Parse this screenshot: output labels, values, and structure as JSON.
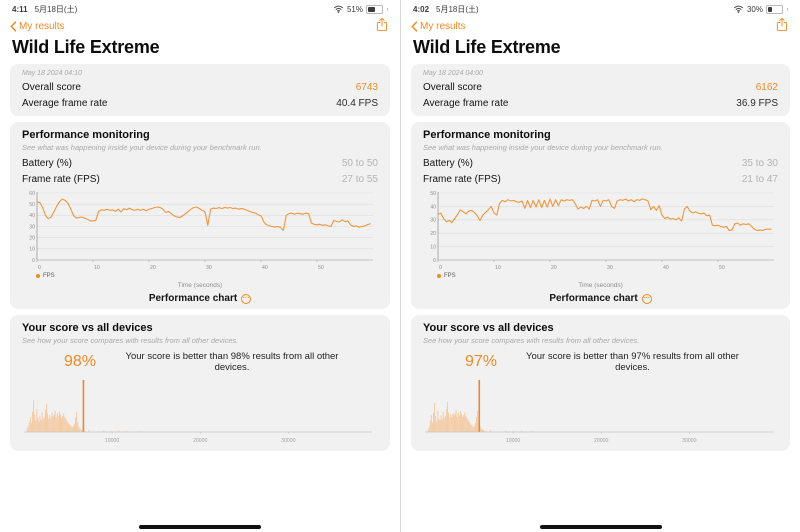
{
  "colors": {
    "accent": "#f08a24",
    "chart_line": "#f0963c",
    "hist_bar": "#f5cba4",
    "hist_marker": "#ee8430"
  },
  "icons": {
    "more": "···"
  },
  "panels": [
    {
      "status": {
        "time": "4:11",
        "date": "5月18日(土)",
        "battery_percent": "51%",
        "battery_fill": 0.51
      },
      "nav": {
        "back_label": "My results"
      },
      "page_title": "Wild Life Extreme",
      "result": {
        "datetime": "May 18 2024 04:10",
        "overall_label": "Overall score",
        "overall_value": "6743",
        "avg_label": "Average frame rate",
        "avg_value": "40.4 FPS"
      },
      "monitoring": {
        "title": "Performance monitoring",
        "subtitle": "See what was happening inside your device during your benchmark run.",
        "battery_label": "Battery (%)",
        "battery_value": "50 to 50",
        "framerate_label": "Frame rate (FPS)",
        "framerate_value": "27 to 55",
        "legend_label": "FPS",
        "x_axis_label": "Time (seconds)",
        "chart_caption": "Performance chart"
      },
      "comparison": {
        "title": "Your score vs all devices",
        "subtitle": "See how your score compares with results from all other devices.",
        "percent": "98%",
        "description": "Your score is better than 98% results from all other devices."
      }
    },
    {
      "status": {
        "time": "4:02",
        "date": "5月18日(土)",
        "battery_percent": "30%",
        "battery_fill": 0.3
      },
      "nav": {
        "back_label": "My results"
      },
      "page_title": "Wild Life Extreme",
      "result": {
        "datetime": "May 18 2024 04:00",
        "overall_label": "Overall score",
        "overall_value": "6162",
        "avg_label": "Average frame rate",
        "avg_value": "36.9 FPS"
      },
      "monitoring": {
        "title": "Performance monitoring",
        "subtitle": "See what was happening inside your device during your benchmark run.",
        "battery_label": "Battery (%)",
        "battery_value": "35 to 30",
        "framerate_label": "Frame rate (FPS)",
        "framerate_value": "21 to 47",
        "legend_label": "FPS",
        "x_axis_label": "Time (seconds)",
        "chart_caption": "Performance chart"
      },
      "comparison": {
        "title": "Your score vs all devices",
        "subtitle": "See how your score compares with results from all other devices.",
        "percent": "97%",
        "description": "Your score is better than 97% results from all other devices."
      }
    }
  ],
  "chart_data": [
    {
      "panel": "left",
      "line": {
        "type": "line",
        "title": "Performance chart",
        "xlabel": "Time (seconds)",
        "ylabel": "",
        "legend": [
          "FPS"
        ],
        "xlim": [
          0,
          60
        ],
        "ylim": [
          0,
          60
        ],
        "xticks": [
          0,
          10,
          20,
          30,
          40,
          50
        ],
        "yticks": [
          0,
          10,
          20,
          30,
          40,
          50,
          60
        ],
        "x_start": 0,
        "x_step": 0.5,
        "values": [
          52,
          51.5,
          47,
          40,
          37,
          38.5,
          43,
          48,
          52,
          54.5,
          53.5,
          51,
          46,
          40,
          37.5,
          38,
          38.5,
          37.5,
          36.5,
          35,
          35,
          35.5,
          43.5,
          45,
          44.5,
          45.5,
          44.5,
          45,
          43.5,
          45.5,
          43,
          46,
          45,
          46.5,
          45,
          44.5,
          45.5,
          44.5,
          45.5,
          44,
          45.5,
          46,
          47,
          47.5,
          47,
          45.5,
          42.5,
          43.5,
          41.5,
          39.5,
          38.5,
          38,
          39.5,
          41.5,
          43.5,
          45.5,
          47,
          47.5,
          46,
          44.5,
          43,
          31,
          45.5,
          46.5,
          46,
          47,
          46,
          47,
          46.5,
          47,
          46,
          46.5,
          45.5,
          46,
          45.5,
          44.5,
          43.5,
          42.5,
          42,
          40.5,
          39.5,
          34,
          31.5,
          30.5,
          30,
          29.5,
          30,
          29,
          26.5,
          40,
          41.5,
          42,
          41,
          42,
          41.5,
          41,
          42,
          41.5,
          33,
          32,
          31.5,
          32,
          31,
          31.5,
          30.5,
          30,
          35.5,
          34.5,
          34,
          36,
          34.5,
          35,
          31.5,
          30,
          30.5,
          29.5,
          30,
          30.5,
          31.5,
          32.5
        ]
      },
      "histogram": {
        "type": "bar",
        "title": "Score distribution vs all devices",
        "xticks": [
          10000,
          20000,
          30000
        ],
        "xlim": [
          0,
          39500
        ],
        "marker_score": 6743,
        "bin_start": 300,
        "bin_width": 122,
        "heights": [
          8,
          14,
          22,
          34,
          20,
          46,
          72,
          40,
          26,
          52,
          32,
          24,
          36,
          28,
          44,
          30,
          34,
          50,
          64,
          42,
          30,
          38,
          32,
          44,
          36,
          40,
          48,
          32,
          42,
          36,
          46,
          40,
          32,
          36,
          42,
          34,
          30,
          26,
          22,
          18,
          15,
          13,
          11,
          13,
          19,
          32,
          46,
          22,
          13,
          9,
          6,
          4,
          3,
          2,
          2
        ],
        "outliers": [
          [
            7300,
            5
          ],
          [
            9000,
            3
          ],
          [
            9900,
            2
          ],
          [
            10700,
            4
          ],
          [
            11600,
            2
          ],
          [
            13000,
            2
          ]
        ]
      }
    },
    {
      "panel": "right",
      "line": {
        "type": "line",
        "title": "Performance chart",
        "xlabel": "Time (seconds)",
        "ylabel": "",
        "legend": [
          "FPS"
        ],
        "xlim": [
          0,
          60
        ],
        "ylim": [
          0,
          50
        ],
        "xticks": [
          0,
          10,
          20,
          30,
          40,
          50
        ],
        "yticks": [
          0,
          10,
          20,
          30,
          40,
          50
        ],
        "x_start": 0,
        "x_step": 0.5,
        "values": [
          34,
          35,
          31,
          28.5,
          29.5,
          28,
          31,
          34,
          37.5,
          36,
          34.5,
          36.5,
          37,
          35.5,
          33,
          29.5,
          33.5,
          35.5,
          37.5,
          40,
          35,
          33.5,
          42.5,
          44.5,
          43.5,
          45,
          44,
          44.5,
          43.5,
          43,
          44,
          38.5,
          44.5,
          39,
          44.5,
          39.5,
          45,
          39,
          44.5,
          39.5,
          45.5,
          40,
          45,
          40.5,
          45,
          44,
          45,
          44.5,
          45,
          42,
          38,
          39.5,
          38.5,
          40,
          38,
          44.5,
          44,
          45,
          40,
          44.5,
          44,
          45,
          40,
          38.5,
          44,
          45,
          44.5,
          45.5,
          44,
          45,
          43.5,
          45,
          44.5,
          45.5,
          45,
          44,
          37.5,
          40,
          37,
          40.5,
          33.5,
          31,
          32,
          30.5,
          31,
          30,
          31.5,
          29,
          38,
          40,
          36.5,
          35,
          36,
          35,
          34.5,
          35,
          33,
          33.5,
          26,
          25.5,
          26,
          25,
          24.5,
          25,
          22,
          22.5,
          27,
          27.5,
          26,
          27,
          26.5,
          27,
          25,
          23,
          22,
          22.5,
          22,
          23,
          23,
          23
        ]
      },
      "histogram": {
        "type": "bar",
        "title": "Score distribution vs all devices",
        "xticks": [
          10000,
          20000,
          30000
        ],
        "xlim": [
          0,
          39500
        ],
        "marker_score": 6162,
        "bin_start": 300,
        "bin_width": 122,
        "heights": [
          6,
          12,
          26,
          38,
          22,
          44,
          66,
          36,
          24,
          48,
          30,
          26,
          38,
          30,
          46,
          32,
          36,
          52,
          68,
          44,
          32,
          40,
          34,
          42,
          38,
          42,
          50,
          34,
          44,
          38,
          48,
          42,
          34,
          38,
          44,
          36,
          32,
          28,
          24,
          20,
          16,
          14,
          12,
          14,
          20,
          34,
          48,
          24,
          14,
          10,
          7,
          5,
          3,
          2,
          2
        ],
        "outliers": [
          [
            7400,
            6
          ],
          [
            9100,
            3
          ],
          [
            10000,
            2
          ],
          [
            10900,
            3
          ],
          [
            12000,
            2
          ]
        ]
      }
    }
  ]
}
